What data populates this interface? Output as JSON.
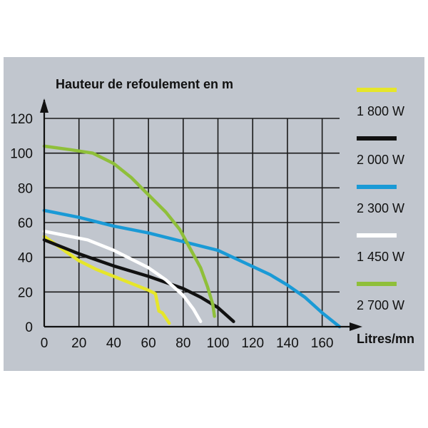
{
  "chart_data": {
    "type": "line",
    "title": "Hauteur de refoulement en m",
    "ylabel": "Hauteur de refoulement en m",
    "xlabel": "Litres/mn",
    "xlim": [
      0,
      170
    ],
    "ylim": [
      0,
      120
    ],
    "xticks": [
      0,
      20,
      40,
      60,
      80,
      100,
      120,
      140,
      160
    ],
    "yticks": [
      0,
      20,
      40,
      60,
      80,
      100,
      120
    ],
    "grid": true,
    "legend_position": "right",
    "series": [
      {
        "name": "1 800 W",
        "color": "#e6e62a",
        "points": [
          [
            0,
            52
          ],
          [
            10,
            45
          ],
          [
            20,
            38
          ],
          [
            30,
            33
          ],
          [
            40,
            29
          ],
          [
            50,
            25
          ],
          [
            60,
            21
          ],
          [
            64,
            19
          ],
          [
            66,
            9
          ],
          [
            68,
            8
          ],
          [
            72,
            2
          ]
        ]
      },
      {
        "name": "2 000 W",
        "color": "#111111",
        "points": [
          [
            0,
            50
          ],
          [
            20,
            42
          ],
          [
            40,
            35
          ],
          [
            60,
            29
          ],
          [
            80,
            22
          ],
          [
            90,
            17
          ],
          [
            100,
            11
          ],
          [
            109,
            3
          ]
        ]
      },
      {
        "name": "2 300 W",
        "color": "#1a9ad6",
        "points": [
          [
            0,
            67
          ],
          [
            20,
            63
          ],
          [
            40,
            58
          ],
          [
            60,
            54
          ],
          [
            80,
            49
          ],
          [
            100,
            44
          ],
          [
            115,
            37
          ],
          [
            130,
            30
          ],
          [
            140,
            24
          ],
          [
            150,
            17
          ],
          [
            160,
            8
          ],
          [
            170,
            0
          ]
        ]
      },
      {
        "name": "1 450 W",
        "color": "#ffffff",
        "points": [
          [
            0,
            55
          ],
          [
            10,
            53
          ],
          [
            25,
            50
          ],
          [
            40,
            44
          ],
          [
            50,
            39
          ],
          [
            60,
            34
          ],
          [
            70,
            27
          ],
          [
            80,
            18
          ],
          [
            86,
            10
          ],
          [
            90,
            3
          ]
        ]
      },
      {
        "name": "2 700 W",
        "color": "#8fbf3a",
        "points": [
          [
            0,
            104
          ],
          [
            15,
            102
          ],
          [
            28,
            100
          ],
          [
            40,
            94
          ],
          [
            50,
            86
          ],
          [
            60,
            76
          ],
          [
            70,
            66
          ],
          [
            78,
            56
          ],
          [
            84,
            45
          ],
          [
            90,
            34
          ],
          [
            94,
            23
          ],
          [
            97,
            13
          ],
          [
            98,
            6
          ]
        ]
      }
    ]
  }
}
